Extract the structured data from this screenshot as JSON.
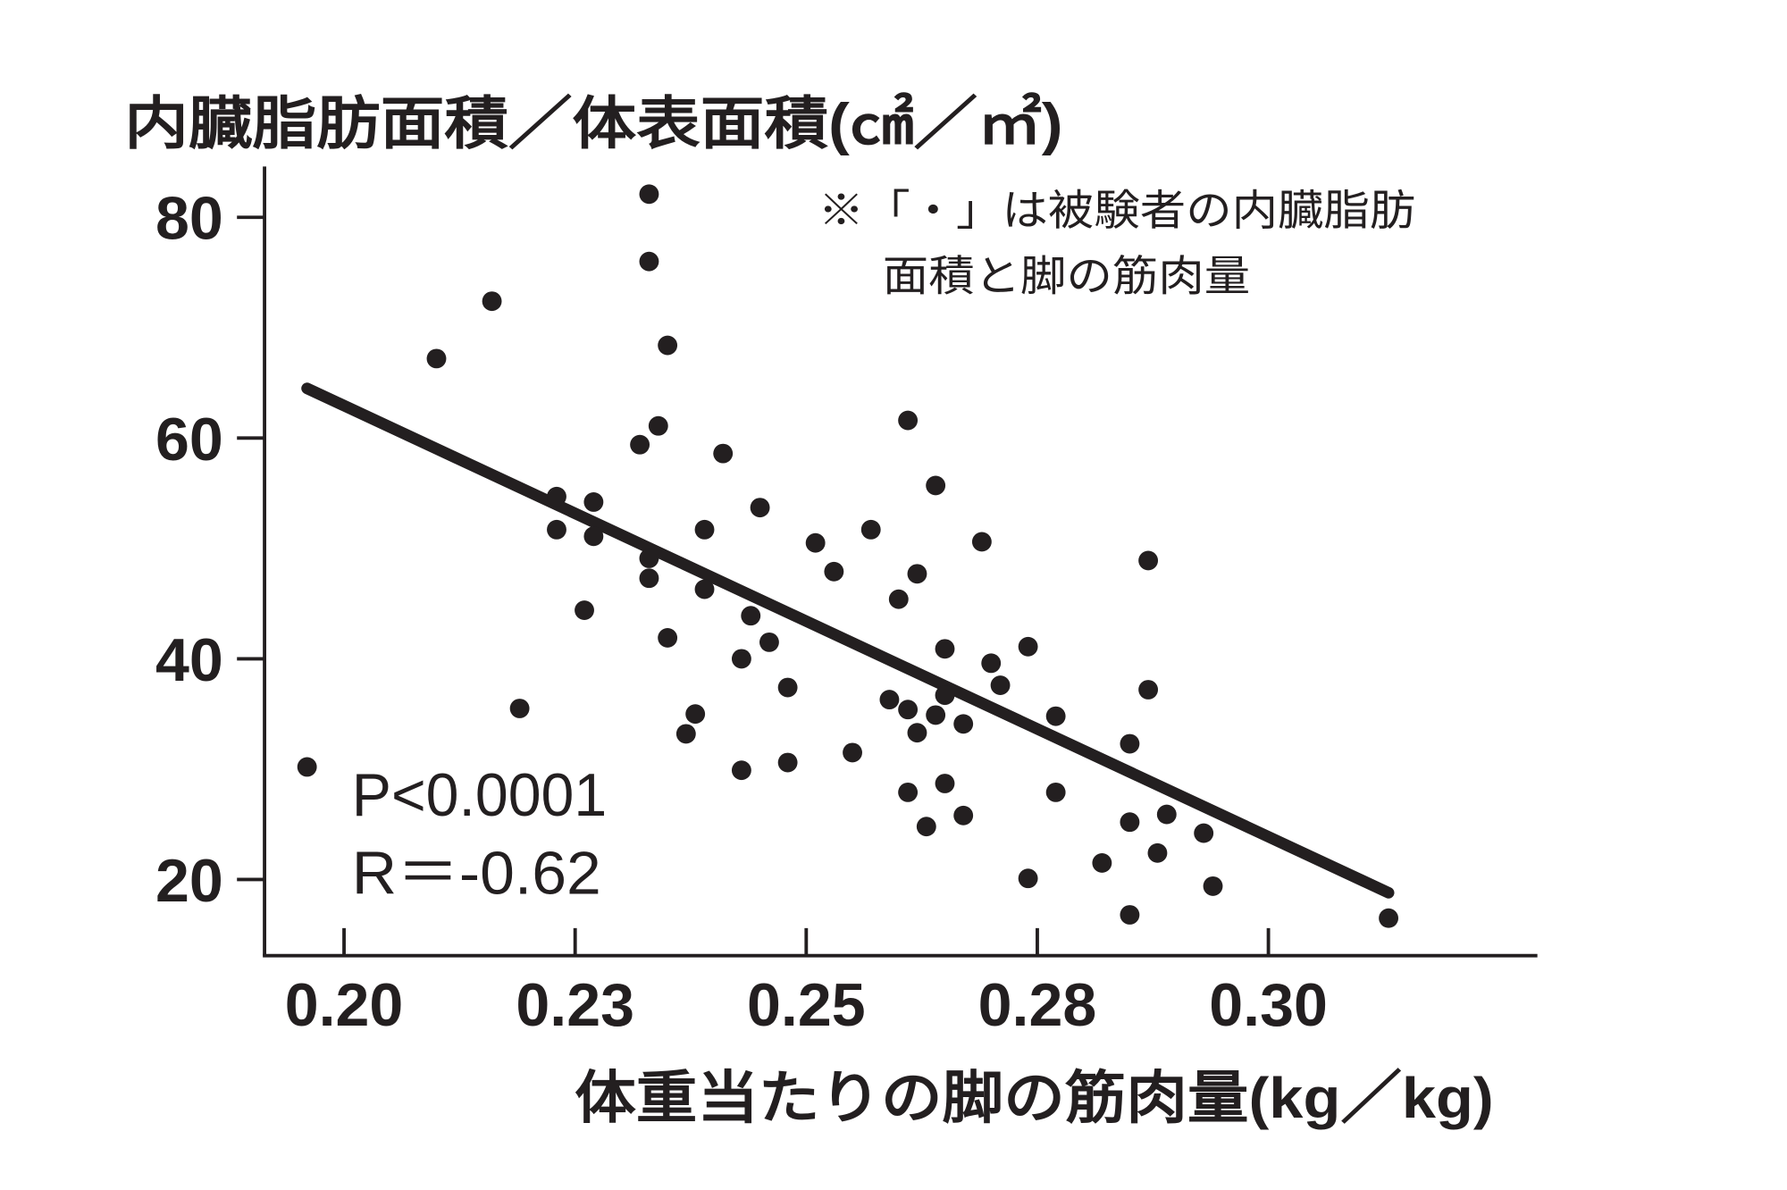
{
  "chart_data": {
    "type": "scatter",
    "ylabel": "内臓脂肪面積／体表面積(㎠／㎡)",
    "xlabel": "体重当たりの脚の筋肉量(kg／kg)",
    "xlim": [
      0.1914,
      0.3291
    ],
    "ylim": [
      13.1,
      84.6
    ],
    "xticks": [
      0.2,
      0.225,
      0.25,
      0.275,
      0.3
    ],
    "xtick_labels": [
      "0.20",
      "0.23",
      "0.25",
      "0.28",
      "0.30"
    ],
    "yticks": [
      20,
      40,
      60,
      80
    ],
    "ytick_labels": [
      "20",
      "40",
      "60",
      "80"
    ],
    "grid": false,
    "legend": "none",
    "x": [
      0.196,
      0.21,
      0.216,
      0.219,
      0.223,
      0.223,
      0.227,
      0.227,
      0.226,
      0.233,
      0.233,
      0.235,
      0.234,
      0.232,
      0.233,
      0.233,
      0.235,
      0.239,
      0.238,
      0.237,
      0.239,
      0.241,
      0.245,
      0.244,
      0.246,
      0.243,
      0.248,
      0.243,
      0.248,
      0.251,
      0.253,
      0.255,
      0.257,
      0.259,
      0.26,
      0.261,
      0.262,
      0.264,
      0.265,
      0.265,
      0.261,
      0.262,
      0.264,
      0.267,
      0.269,
      0.27,
      0.271,
      0.261,
      0.265,
      0.263,
      0.267,
      0.274,
      0.277,
      0.277,
      0.274,
      0.287,
      0.287,
      0.285,
      0.285,
      0.289,
      0.288,
      0.282,
      0.285,
      0.293,
      0.294,
      0.313
    ],
    "y": [
      30.2,
      67.2,
      72.4,
      35.5,
      54.7,
      51.7,
      54.2,
      51.1,
      44.4,
      82.1,
      76.0,
      68.4,
      61.1,
      59.4,
      49.1,
      47.3,
      41.9,
      46.3,
      35.0,
      33.2,
      51.7,
      58.6,
      53.7,
      43.9,
      41.5,
      40.0,
      37.4,
      29.9,
      30.6,
      50.5,
      47.9,
      31.5,
      51.7,
      36.3,
      45.4,
      61.6,
      47.7,
      55.7,
      40.9,
      36.7,
      35.4,
      33.3,
      34.9,
      34.1,
      50.6,
      39.6,
      37.6,
      27.9,
      28.7,
      24.8,
      25.8,
      41.1,
      34.8,
      27.9,
      20.1,
      48.9,
      37.2,
      32.3,
      25.2,
      25.9,
      22.4,
      21.5,
      16.8,
      24.2,
      19.4,
      16.5
    ],
    "trendline": {
      "x": [
        0.196,
        0.313
      ],
      "y": [
        64.5,
        18.8
      ]
    },
    "annotations": {
      "stats": [
        "P<0.0001",
        "R＝-0.62"
      ],
      "note": [
        "※「・」は被験者の内臓脂肪",
        "面積と脚の筋肉量"
      ]
    },
    "colors": {
      "ink": "#231f20",
      "background": "#ffffff"
    }
  }
}
